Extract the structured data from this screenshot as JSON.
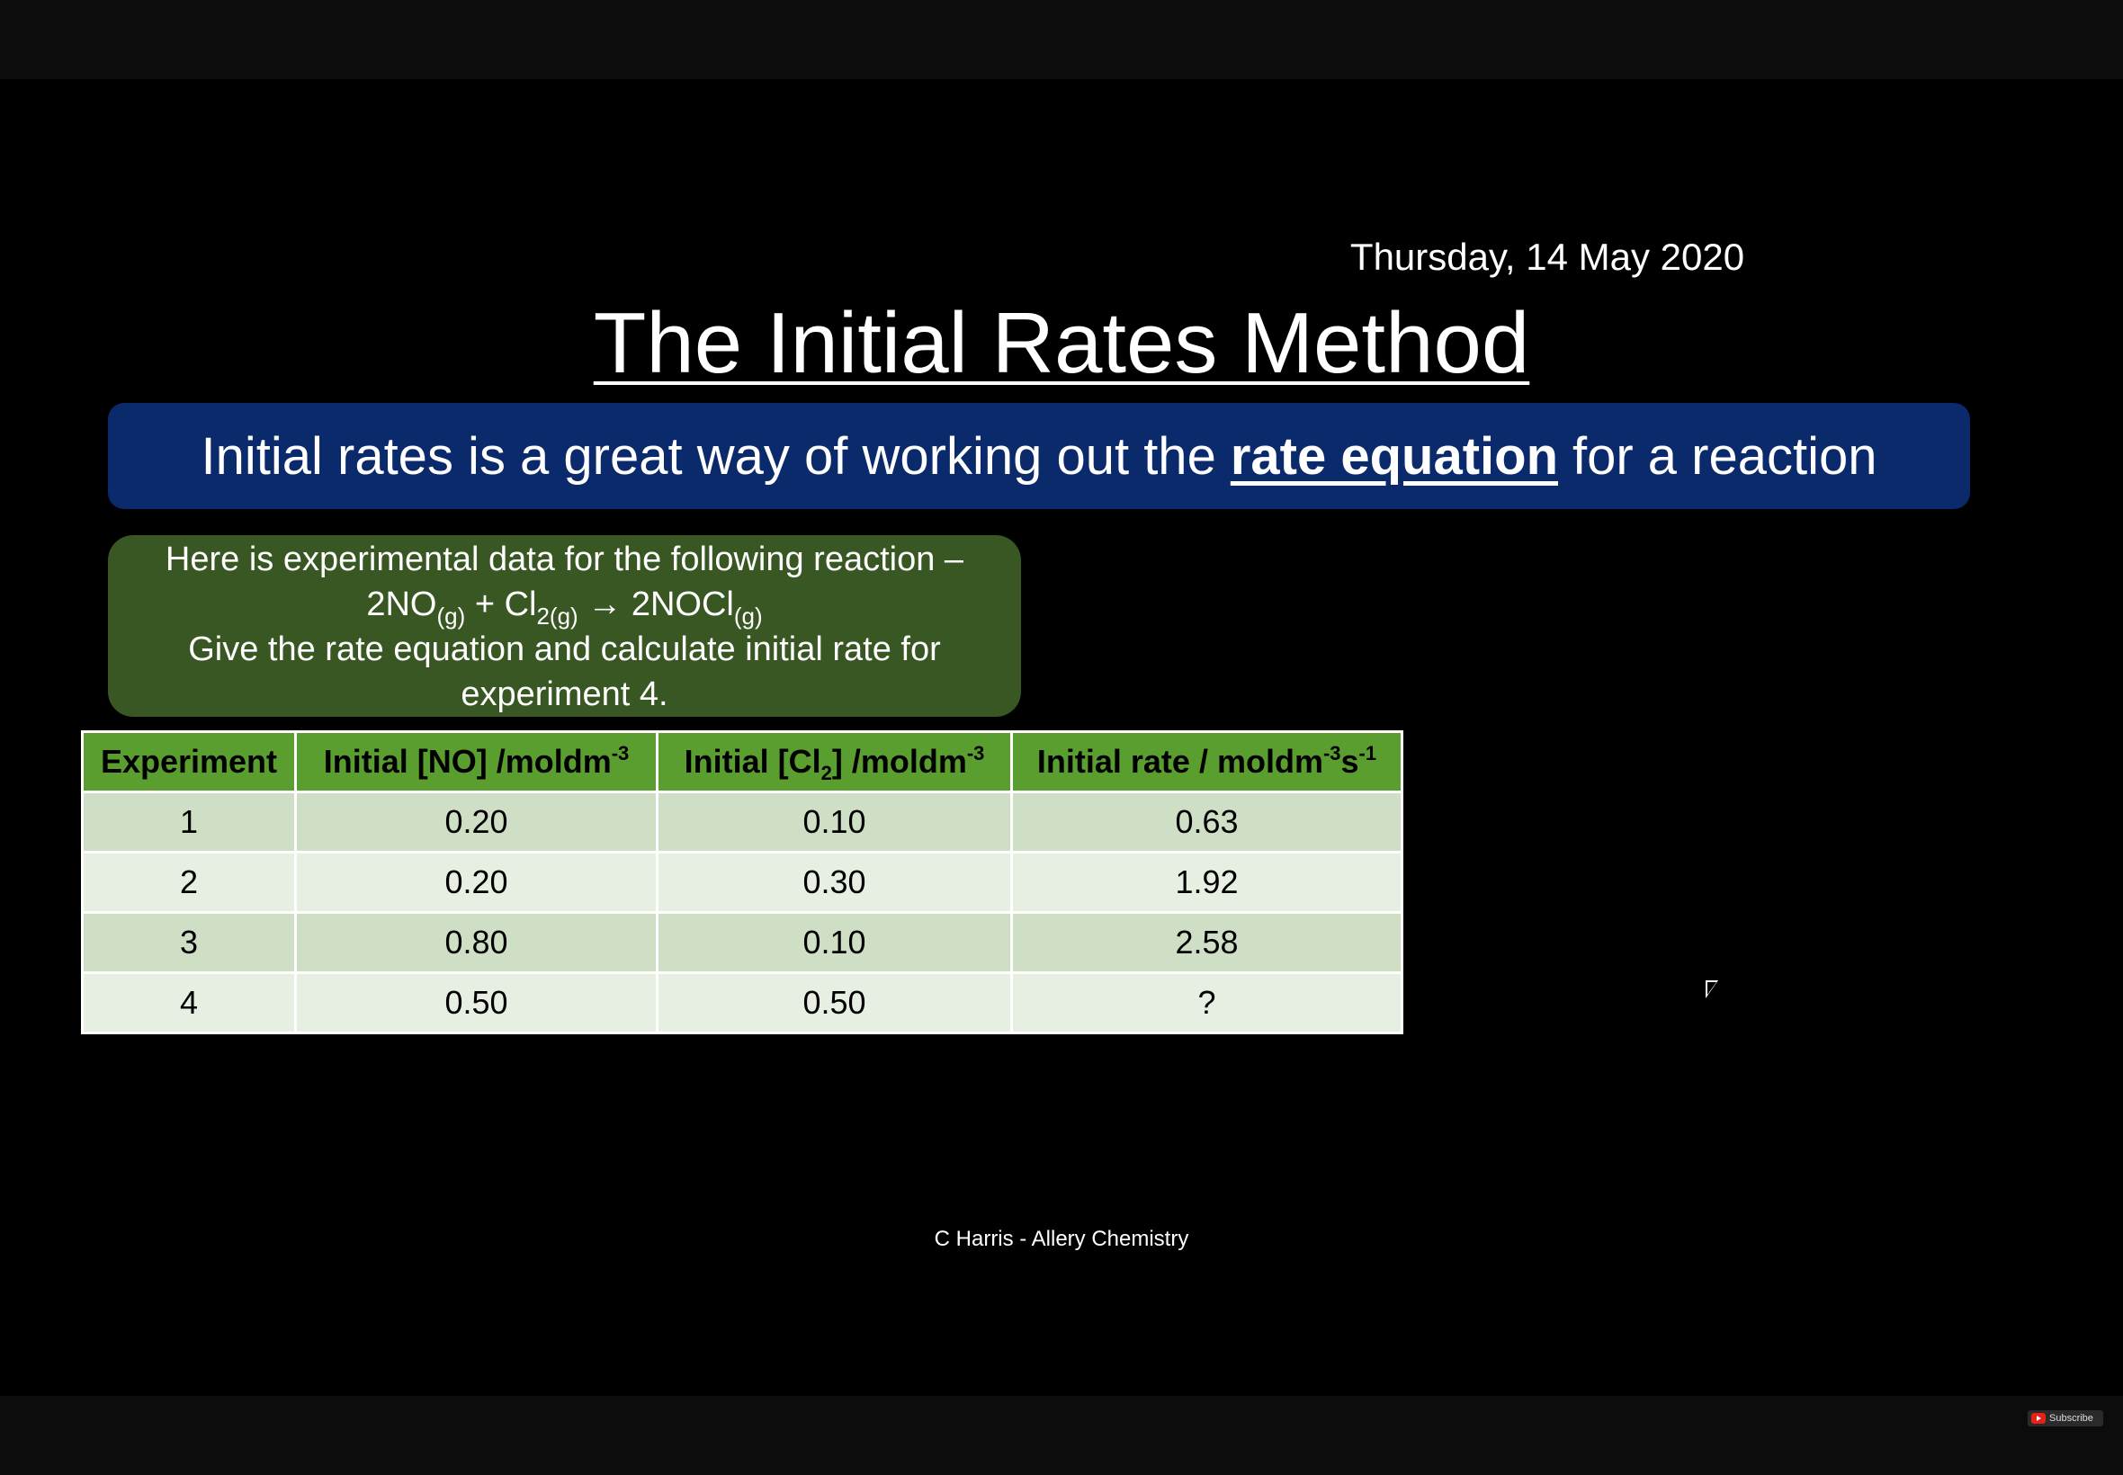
{
  "slide": {
    "date": "Thursday, 14 May 2020",
    "title": "The Initial Rates Method",
    "banner": {
      "pre": "Initial rates is a great way of working out the",
      "emphasis": "rate equation",
      "post": "for a reaction"
    },
    "question": {
      "line1": "Here is experimental data for the following reaction –",
      "eq_2no": "2NO",
      "eq_g1": "(g)",
      "eq_plus_cl": " + Cl",
      "eq_2g": "2(g)",
      "eq_arrow": " → 2NOCl",
      "eq_g3": "(g)",
      "line3": "Give the rate equation and calculate initial rate for",
      "line4": "experiment 4."
    },
    "table": {
      "headers": {
        "experiment": "Experiment",
        "no_pre": "Initial [NO] /moldm",
        "no_sup": "-3",
        "cl_pre": "Initial [Cl",
        "cl_sub": "2",
        "cl_post": "] /moldm",
        "cl_sup": "-3",
        "rate_pre": "Initial rate / moldm",
        "rate_sup1": "-3",
        "rate_mid": "s",
        "rate_sup2": "-1"
      },
      "rows": [
        {
          "experiment": "1",
          "no": "0.20",
          "cl2": "0.10",
          "rate": "0.63"
        },
        {
          "experiment": "2",
          "no": "0.20",
          "cl2": "0.30",
          "rate": "1.92"
        },
        {
          "experiment": "3",
          "no": "0.80",
          "cl2": "0.10",
          "rate": "2.58"
        },
        {
          "experiment": "4",
          "no": "0.50",
          "cl2": "0.50",
          "rate": "?"
        }
      ]
    },
    "footer": "C Harris - Allery Chemistry"
  },
  "player": {
    "subscribe_label": "Subscribe",
    "logo_icon": "youtube-icon",
    "cursor_icon": "mouse-pointer-icon"
  }
}
